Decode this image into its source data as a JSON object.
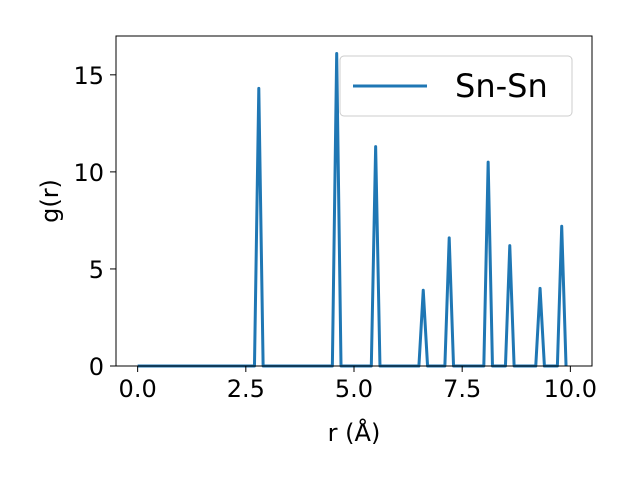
{
  "chart_data": {
    "type": "line",
    "xlabel": "r (Å)",
    "ylabel": "g(r)",
    "xlim": [
      -0.5,
      10.5
    ],
    "ylim": [
      0,
      17
    ],
    "xticks": [
      0.0,
      2.5,
      5.0,
      7.5,
      10.0
    ],
    "xtick_labels": [
      "0.0",
      "2.5",
      "5.0",
      "7.5",
      "10.0"
    ],
    "yticks": [
      0,
      5,
      10,
      15
    ],
    "ytick_labels": [
      "0",
      "5",
      "10",
      "15"
    ],
    "grid": false,
    "legend_position": "top-right",
    "series": [
      {
        "name": "Sn-Sn",
        "color": "#1f77b4",
        "x": [
          0.0,
          2.7,
          2.8,
          2.9,
          4.5,
          4.6,
          4.7,
          5.4,
          5.5,
          5.6,
          6.5,
          6.6,
          6.7,
          7.1,
          7.2,
          7.3,
          8.0,
          8.1,
          8.2,
          8.5,
          8.6,
          8.7,
          9.2,
          9.3,
          9.4,
          9.7,
          9.8,
          9.9
        ],
        "y": [
          0,
          0,
          14.3,
          0,
          0,
          16.1,
          0,
          0,
          11.3,
          0,
          0,
          3.9,
          0,
          0,
          6.6,
          0,
          0,
          10.5,
          0,
          0,
          6.2,
          0,
          0,
          4.0,
          0,
          0,
          7.2,
          0
        ]
      }
    ]
  }
}
